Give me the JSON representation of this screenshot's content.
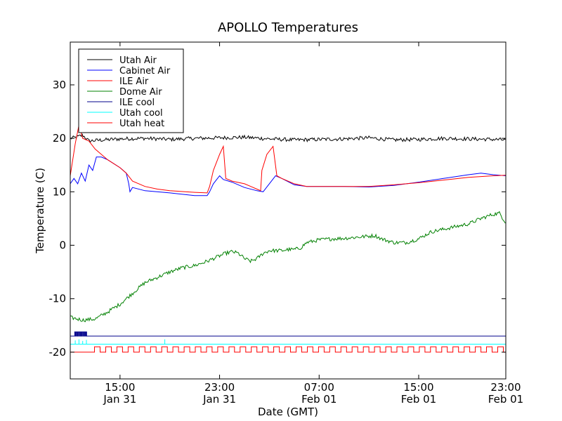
{
  "chart_data": {
    "type": "line",
    "title": "APOLLO Temperatures",
    "xlabel": "Date (GMT)",
    "ylabel": "Temperature (C)",
    "xlim": [
      0,
      35
    ],
    "ylim": [
      -25,
      38
    ],
    "grid": false,
    "legend_position": "top-left",
    "x_unit": "hours since 2016-01-31 11:00 GMT (approx.)",
    "x_ticks": [
      {
        "x": 4,
        "line1": "15:00",
        "line2": "Jan 31"
      },
      {
        "x": 12,
        "line1": "23:00",
        "line2": "Jan 31"
      },
      {
        "x": 20,
        "line1": "07:00",
        "line2": "Feb 01"
      },
      {
        "x": 28,
        "line1": "15:00",
        "line2": "Feb 01"
      },
      {
        "x": 36,
        "line1": "23:00",
        "line2": "Feb 01"
      }
    ],
    "y_ticks": [
      {
        "y": 30,
        "label": "30"
      },
      {
        "y": 20,
        "label": "20"
      },
      {
        "y": 10,
        "label": "10"
      },
      {
        "y": 0,
        "label": "0"
      },
      {
        "y": -10,
        "label": "-10"
      },
      {
        "y": -20,
        "label": "-20"
      }
    ],
    "series": [
      {
        "name": "Utah Air",
        "color": "#000000",
        "wiggle": 0.35,
        "points": [
          [
            0,
            20.0
          ],
          [
            0.5,
            20.2
          ],
          [
            1.0,
            20.6
          ],
          [
            1.5,
            19.5
          ],
          [
            2,
            19.6
          ],
          [
            4,
            19.9
          ],
          [
            6,
            20.0
          ],
          [
            8,
            19.8
          ],
          [
            10,
            20.0
          ],
          [
            12,
            20.1
          ],
          [
            14,
            20.2
          ],
          [
            16,
            19.9
          ],
          [
            18,
            19.7
          ],
          [
            20,
            19.8
          ],
          [
            22,
            19.9
          ],
          [
            24,
            20.1
          ],
          [
            26,
            19.7
          ],
          [
            28,
            19.8
          ],
          [
            30,
            20.0
          ],
          [
            32,
            19.9
          ],
          [
            34,
            19.8
          ],
          [
            35,
            19.7
          ]
        ]
      },
      {
        "name": "Cabinet Air",
        "color": "#0000ff",
        "points": [
          [
            0,
            11.5
          ],
          [
            0.3,
            12.5
          ],
          [
            0.6,
            11.5
          ],
          [
            0.9,
            13.5
          ],
          [
            1.2,
            12.0
          ],
          [
            1.5,
            15.0
          ],
          [
            1.8,
            14.0
          ],
          [
            2.1,
            16.5
          ],
          [
            2.5,
            16.5
          ],
          [
            3,
            16.0
          ],
          [
            4,
            14.5
          ],
          [
            4.5,
            13.5
          ],
          [
            4.7,
            11.5
          ],
          [
            4.8,
            10.0
          ],
          [
            5,
            10.8
          ],
          [
            6,
            10.2
          ],
          [
            8,
            9.8
          ],
          [
            10,
            9.3
          ],
          [
            11,
            9.3
          ],
          [
            11.2,
            10.0
          ],
          [
            11.5,
            11.5
          ],
          [
            12,
            13.0
          ],
          [
            12.3,
            12.3
          ],
          [
            13,
            11.8
          ],
          [
            14,
            10.8
          ],
          [
            15,
            10.2
          ],
          [
            15.5,
            10.0
          ],
          [
            16,
            11.5
          ],
          [
            16.5,
            13.0
          ],
          [
            17,
            12.5
          ],
          [
            18,
            11.3
          ],
          [
            19,
            11.0
          ],
          [
            20,
            11.0
          ],
          [
            22,
            11.0
          ],
          [
            24,
            10.9
          ],
          [
            26,
            11.2
          ],
          [
            28,
            11.8
          ],
          [
            30,
            12.5
          ],
          [
            32,
            13.2
          ],
          [
            33,
            13.5
          ],
          [
            34,
            13.2
          ],
          [
            35,
            13.0
          ]
        ]
      },
      {
        "name": "ILE Air",
        "color": "#ff0000",
        "points": [
          [
            0,
            13.0
          ],
          [
            0.4,
            19.0
          ],
          [
            0.7,
            22.5
          ],
          [
            1.0,
            20.0
          ],
          [
            1.5,
            19.5
          ],
          [
            2,
            18.0
          ],
          [
            3,
            16.0
          ],
          [
            4,
            14.5
          ],
          [
            4.5,
            13.5
          ],
          [
            5,
            12.0
          ],
          [
            6,
            11.0
          ],
          [
            7,
            10.5
          ],
          [
            8,
            10.2
          ],
          [
            10,
            9.9
          ],
          [
            11,
            9.8
          ],
          [
            11.2,
            11.0
          ],
          [
            11.5,
            14.0
          ],
          [
            12,
            17.0
          ],
          [
            12.3,
            18.5
          ],
          [
            12.5,
            12.5
          ],
          [
            13,
            12.0
          ],
          [
            14,
            11.5
          ],
          [
            14.5,
            11.0
          ],
          [
            15,
            10.5
          ],
          [
            15.3,
            10.2
          ],
          [
            15.4,
            14.0
          ],
          [
            15.8,
            17.0
          ],
          [
            16.3,
            18.5
          ],
          [
            16.6,
            13.0
          ],
          [
            17,
            12.5
          ],
          [
            18,
            11.5
          ],
          [
            19,
            11.0
          ],
          [
            20,
            11.0
          ],
          [
            22,
            11.0
          ],
          [
            24,
            11.0
          ],
          [
            26,
            11.3
          ],
          [
            28,
            11.7
          ],
          [
            30,
            12.2
          ],
          [
            32,
            12.7
          ],
          [
            34,
            13.0
          ],
          [
            35,
            13.1
          ]
        ]
      },
      {
        "name": "Dome Air",
        "color": "#008000",
        "wiggle": 0.35,
        "points": [
          [
            0,
            -13.5
          ],
          [
            1,
            -14.0
          ],
          [
            2,
            -13.8
          ],
          [
            3,
            -12.5
          ],
          [
            4,
            -11.0
          ],
          [
            5,
            -9.0
          ],
          [
            6,
            -7.0
          ],
          [
            7,
            -6.0
          ],
          [
            8,
            -5.0
          ],
          [
            9,
            -4.2
          ],
          [
            10,
            -3.8
          ],
          [
            11,
            -3.0
          ],
          [
            12,
            -2.0
          ],
          [
            12.5,
            -1.5
          ],
          [
            13,
            -1.2
          ],
          [
            13.5,
            -1.5
          ],
          [
            14,
            -2.5
          ],
          [
            14.5,
            -3.0
          ],
          [
            15,
            -2.5
          ],
          [
            15.5,
            -1.5
          ],
          [
            16,
            -1.0
          ],
          [
            17,
            -1.0
          ],
          [
            17.5,
            -0.8
          ],
          [
            18,
            -0.8
          ],
          [
            18.5,
            -0.5
          ],
          [
            19,
            0.5
          ],
          [
            20,
            1.0
          ],
          [
            21,
            1.2
          ],
          [
            22,
            1.3
          ],
          [
            23,
            1.5
          ],
          [
            24,
            1.7
          ],
          [
            24.5,
            1.8
          ],
          [
            25,
            1.2
          ],
          [
            26,
            0.5
          ],
          [
            27,
            0.5
          ],
          [
            28,
            1.2
          ],
          [
            29,
            2.5
          ],
          [
            30,
            3.0
          ],
          [
            31,
            3.5
          ],
          [
            32,
            4.0
          ],
          [
            33,
            5.0
          ],
          [
            34,
            5.8
          ],
          [
            34.5,
            6.0
          ],
          [
            35,
            4.2
          ]
        ]
      },
      {
        "name": "ILE cool",
        "color": "#00008b",
        "pulses": {
          "base": -17.0,
          "high": -16.2,
          "from": 0.3,
          "to": 1.3,
          "period": 0.12,
          "duty": 0.55
        },
        "points": [
          [
            0,
            -17.0
          ],
          [
            35,
            -17.0
          ]
        ]
      },
      {
        "name": "Utah cool",
        "color": "#00ffff",
        "spikes": [
          [
            0.4,
            -17.8
          ],
          [
            0.7,
            -17.6
          ],
          [
            1.0,
            -17.9
          ],
          [
            1.3,
            -17.7
          ],
          [
            7.6,
            -17.6
          ]
        ],
        "points": [
          [
            0,
            -18.5
          ],
          [
            35,
            -18.5
          ]
        ]
      },
      {
        "name": "Utah heat",
        "color": "#ff0000",
        "pulses": {
          "base": -20.0,
          "high": -19.0,
          "from": 1.5,
          "to": 35,
          "period": 0.9,
          "duty": 0.5
        },
        "points": [
          [
            0,
            -20.0
          ],
          [
            35,
            -20.0
          ]
        ]
      }
    ]
  }
}
